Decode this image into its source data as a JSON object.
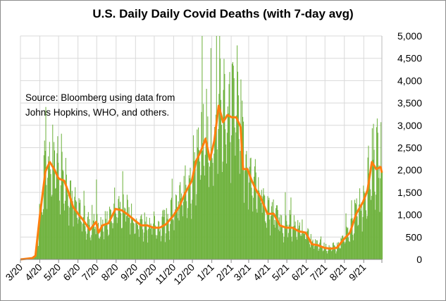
{
  "chart_data": {
    "type": "bar+line",
    "title": "U.S. Daily Daily Covid Deaths (with 7-day avg)",
    "annotation": [
      "Source:  Bloomberg using data from",
      "Johns Hopkins, WHO, and others."
    ],
    "xlabel": "",
    "ylabel": "",
    "ylim": [
      0,
      5000
    ],
    "y_ticks": [
      "0",
      "500",
      "1,000",
      "1,500",
      "2,000",
      "2,500",
      "3,000",
      "3,500",
      "4,000",
      "4,500",
      "5,000"
    ],
    "x_ticks": [
      "3/20",
      "4/20",
      "5/20",
      "6/20",
      "7/20",
      "8/20",
      "9/20",
      "10/20",
      "11/20",
      "12/20",
      "1/21",
      "2/21",
      "3/21",
      "4/21",
      "5/21",
      "6/21",
      "7/21",
      "8/21",
      "9/21"
    ],
    "x_range": [
      "2020-03-01",
      "2021-09-30"
    ],
    "grid": true,
    "y_axis_position": "right",
    "colors": {
      "bars": "#70b340",
      "avg_line": "#ff7f0e",
      "grid": "#d9d9d9"
    },
    "seven_day_avg": [
      [
        "2020-03-01",
        0
      ],
      [
        "2020-03-20",
        30
      ],
      [
        "2020-03-25",
        80
      ],
      [
        "2020-04-01",
        970
      ],
      [
        "2020-04-10",
        1970
      ],
      [
        "2020-04-17",
        2180
      ],
      [
        "2020-04-24",
        2020
      ],
      [
        "2020-05-01",
        1810
      ],
      [
        "2020-05-10",
        1760
      ],
      [
        "2020-05-17",
        1500
      ],
      [
        "2020-05-24",
        1180
      ],
      [
        "2020-06-01",
        1020
      ],
      [
        "2020-06-10",
        870
      ],
      [
        "2020-06-20",
        660
      ],
      [
        "2020-06-30",
        840
      ],
      [
        "2020-07-04",
        600
      ],
      [
        "2020-07-10",
        760
      ],
      [
        "2020-07-20",
        810
      ],
      [
        "2020-07-31",
        1130
      ],
      [
        "2020-08-10",
        1100
      ],
      [
        "2020-08-20",
        1000
      ],
      [
        "2020-08-31",
        870
      ],
      [
        "2020-09-10",
        760
      ],
      [
        "2020-09-20",
        760
      ],
      [
        "2020-09-30",
        710
      ],
      [
        "2020-10-10",
        710
      ],
      [
        "2020-10-20",
        790
      ],
      [
        "2020-10-31",
        970
      ],
      [
        "2020-11-10",
        1180
      ],
      [
        "2020-11-20",
        1500
      ],
      [
        "2020-11-30",
        1760
      ],
      [
        "2020-12-07",
        2200
      ],
      [
        "2020-12-15",
        2440
      ],
      [
        "2020-12-22",
        2700
      ],
      [
        "2020-12-29",
        2230
      ],
      [
        "2021-01-05",
        2650
      ],
      [
        "2021-01-12",
        3440
      ],
      [
        "2021-01-19",
        3070
      ],
      [
        "2021-01-26",
        3230
      ],
      [
        "2021-02-02",
        3180
      ],
      [
        "2021-02-09",
        3180
      ],
      [
        "2021-02-16",
        2970
      ],
      [
        "2021-02-20",
        2020
      ],
      [
        "2021-02-27",
        2020
      ],
      [
        "2021-03-06",
        1760
      ],
      [
        "2021-03-13",
        1550
      ],
      [
        "2021-03-20",
        1390
      ],
      [
        "2021-03-31",
        1020
      ],
      [
        "2021-04-10",
        1020
      ],
      [
        "2021-04-20",
        760
      ],
      [
        "2021-04-30",
        710
      ],
      [
        "2021-05-10",
        710
      ],
      [
        "2021-05-20",
        630
      ],
      [
        "2021-05-31",
        600
      ],
      [
        "2021-06-10",
        340
      ],
      [
        "2021-06-20",
        315
      ],
      [
        "2021-06-30",
        260
      ],
      [
        "2021-07-10",
        240
      ],
      [
        "2021-07-20",
        260
      ],
      [
        "2021-07-31",
        450
      ],
      [
        "2021-08-10",
        600
      ],
      [
        "2021-08-20",
        1020
      ],
      [
        "2021-08-31",
        1290
      ],
      [
        "2021-09-07",
        1550
      ],
      [
        "2021-09-14",
        2180
      ],
      [
        "2021-09-21",
        2020
      ],
      [
        "2021-09-28",
        2070
      ],
      [
        "2021-09-30",
        1940
      ]
    ]
  }
}
